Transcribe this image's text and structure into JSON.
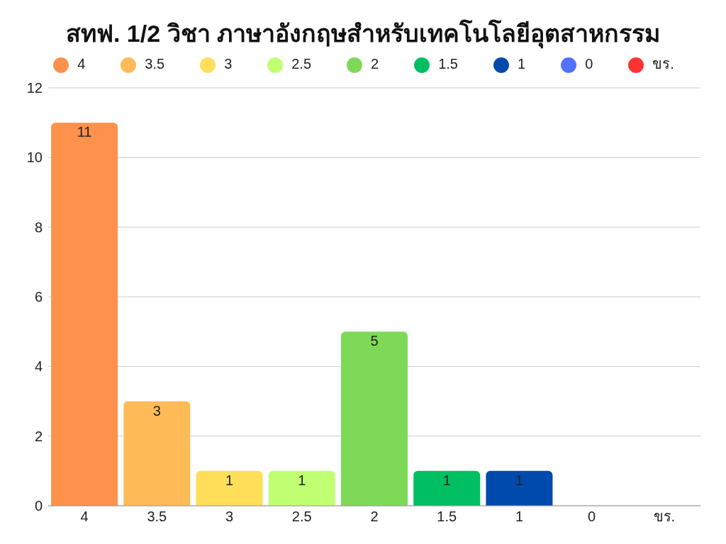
{
  "chart_data": {
    "type": "bar",
    "title": "สทฟ. 1/2 วิชา ภาษาอังกฤษสำหรับเทคโนโลยีอุตสาหกรรม",
    "categories": [
      "4",
      "3.5",
      "3",
      "2.5",
      "2",
      "1.5",
      "1",
      "0",
      "ขร."
    ],
    "series": [
      {
        "name": "4",
        "color": "#fe914b",
        "values": [
          11,
          null,
          null,
          null,
          null,
          null,
          null,
          null,
          null
        ],
        "value_labels": [
          "11",
          null,
          null,
          null,
          null,
          null,
          null,
          null,
          null
        ]
      },
      {
        "name": "3.5",
        "color": "#ffbb57",
        "values": [
          null,
          3,
          null,
          null,
          null,
          null,
          null,
          null,
          null
        ],
        "value_labels": [
          null,
          "3",
          null,
          null,
          null,
          null,
          null,
          null,
          null
        ]
      },
      {
        "name": "3",
        "color": "#ffde59",
        "values": [
          null,
          null,
          1,
          null,
          null,
          null,
          null,
          null,
          null
        ],
        "value_labels": [
          null,
          null,
          "1",
          null,
          null,
          null,
          null,
          null,
          null
        ]
      },
      {
        "name": "2.5",
        "color": "#c1ff72",
        "values": [
          null,
          null,
          null,
          1,
          null,
          null,
          null,
          null,
          null
        ],
        "value_labels": [
          null,
          null,
          null,
          "1",
          null,
          null,
          null,
          null,
          null
        ]
      },
      {
        "name": "2",
        "color": "#7ed957",
        "values": [
          null,
          null,
          null,
          null,
          5,
          null,
          null,
          null,
          null
        ],
        "value_labels": [
          null,
          null,
          null,
          null,
          "5",
          null,
          null,
          null,
          null
        ]
      },
      {
        "name": "1.5",
        "color": "#00bf63",
        "values": [
          null,
          null,
          null,
          null,
          null,
          1,
          null,
          null,
          null
        ],
        "value_labels": [
          null,
          null,
          null,
          null,
          null,
          "1",
          null,
          null,
          null
        ]
      },
      {
        "name": "1",
        "color": "#004aad",
        "values": [
          null,
          null,
          null,
          null,
          null,
          null,
          1,
          null,
          null
        ],
        "value_labels": [
          null,
          null,
          null,
          null,
          null,
          null,
          "1",
          null,
          null
        ]
      },
      {
        "name": "0",
        "color": "#5271ff",
        "values": [
          null,
          null,
          null,
          null,
          null,
          null,
          null,
          0,
          null
        ],
        "value_labels": [
          null,
          null,
          null,
          null,
          null,
          null,
          null,
          null,
          null
        ]
      },
      {
        "name": "ขร.",
        "color": "#ff3131",
        "values": [
          null,
          null,
          null,
          null,
          null,
          null,
          null,
          null,
          0
        ],
        "value_labels": [
          null,
          null,
          null,
          null,
          null,
          null,
          null,
          null,
          null
        ]
      }
    ],
    "stacked": true,
    "ylim": [
      0,
      12
    ],
    "yticks": [
      0,
      2,
      4,
      6,
      8,
      10,
      12
    ],
    "grid": "y",
    "legend": "top"
  }
}
